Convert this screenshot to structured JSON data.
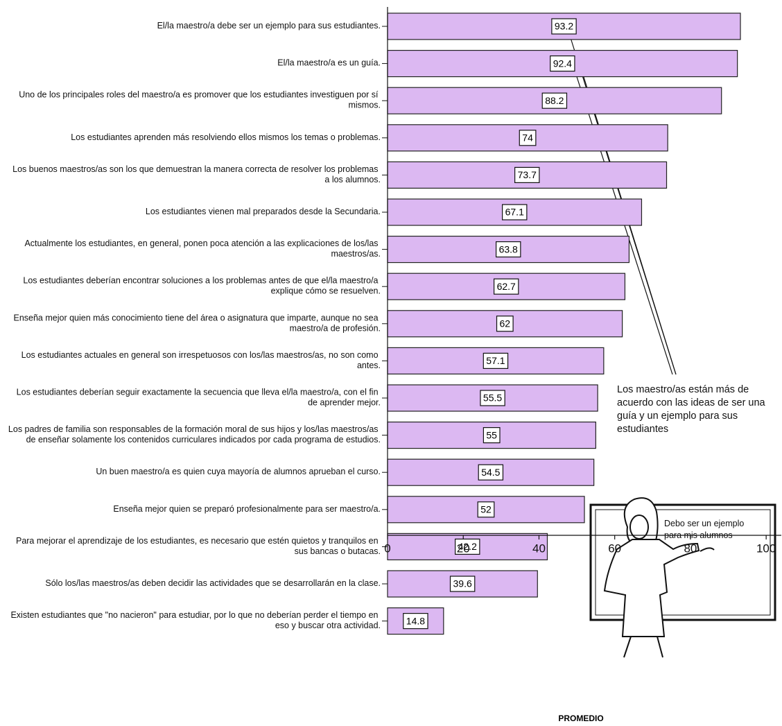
{
  "chart_data": {
    "type": "bar",
    "orientation": "horizontal",
    "categories": [
      "El/la maestro/a debe ser un ejemplo para sus estudiantes.",
      "El/la maestro/a es un guía.",
      "Uno de los principales roles del maestro/a es promover que los estudiantes investiguen por sí mismos.",
      "Los estudiantes aprenden más resolviendo ellos mismos los temas o problemas.",
      "Los buenos maestros/as son los que demuestran la manera correcta de resolver los problemas a los alumnos.",
      "Los estudiantes vienen mal preparados desde la Secundaria.",
      "Actualmente los estudiantes, en general, ponen poca atención a las explicaciones de los/las maestros/as.",
      "Los estudiantes deberían encontrar soluciones a los problemas antes de que el/la maestro/a explique cómo se resuelven.",
      "Enseña mejor quien más conocimiento tiene del área o asignatura que imparte, aunque no sea maestro/a de profesión.",
      "Los estudiantes actuales en general son irrespetuosos con los/las maestros/as, no son como antes.",
      "Los estudiantes deberían seguir exactamente la secuencia que lleva el/la maestro/a, con el fin de aprender mejor.",
      "Los padres de familia son responsables de la formación moral de sus hijos y los/las maestros/as de enseñar solamente los contenidos curriculares indicados por cada programa de estudios.",
      "Un buen maestro/a es quien cuya mayoría de alumnos aprueban el curso.",
      "Enseña mejor quien se preparó profesionalmente para ser maestro/a.",
      "Para mejorar el aprendizaje de los estudiantes, es necesario que estén quietos y tranquilos en sus bancas o butacas.",
      "Sólo los/las maestros/as deben decidir las actividades que se desarrollarán en la clase.",
      "Existen estudiantes que \"no nacieron\" para estudiar, por lo que no deberían perder el tiempo en eso y buscar otra actividad."
    ],
    "values": [
      93.2,
      92.4,
      88.2,
      74,
      73.7,
      67.1,
      63.8,
      62.7,
      62,
      57.1,
      55.5,
      55,
      54.5,
      52,
      42.2,
      39.6,
      14.8
    ],
    "color": "#dcb8f2",
    "xlim": [
      0,
      104
    ],
    "xticks": [
      0,
      20,
      40,
      60,
      80,
      100
    ],
    "x_label": "PROMEDIO",
    "annotation": "Los maestro/as están más de acuerdo con las ideas de ser una guía y un ejemplo para sus estudiantes",
    "speech": "Debo ser un ejemplo para mis alumnos"
  }
}
